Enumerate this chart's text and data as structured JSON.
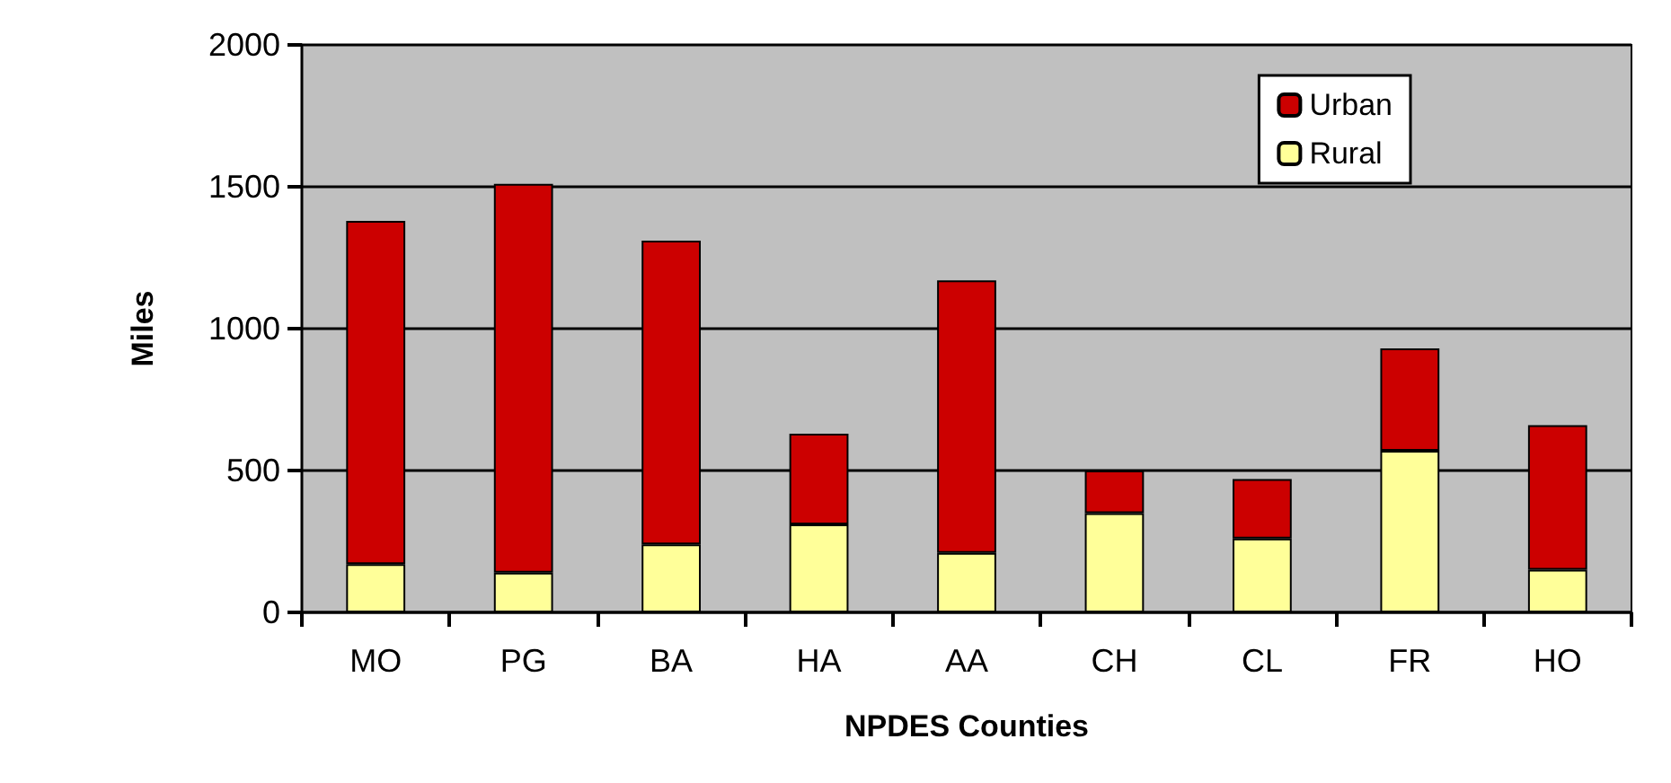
{
  "chart_data": {
    "type": "bar",
    "stacked": true,
    "xlabel": "NPDES Counties",
    "ylabel": "Miles",
    "categories": [
      "MO",
      "PG",
      "BA",
      "HA",
      "AA",
      "CH",
      "CL",
      "FR",
      "HO"
    ],
    "series": [
      {
        "name": "Rural",
        "color": "#ffff99",
        "values": [
          170,
          140,
          240,
          310,
          210,
          350,
          260,
          570,
          150
        ]
      },
      {
        "name": "Urban",
        "color": "#cc0000",
        "values": [
          1210,
          1370,
          1070,
          320,
          960,
          150,
          210,
          360,
          510
        ]
      }
    ],
    "ylim": [
      0,
      2000
    ],
    "yticks": [
      0,
      500,
      1000,
      1500,
      2000
    ],
    "grid": "y",
    "legend": "top right"
  }
}
